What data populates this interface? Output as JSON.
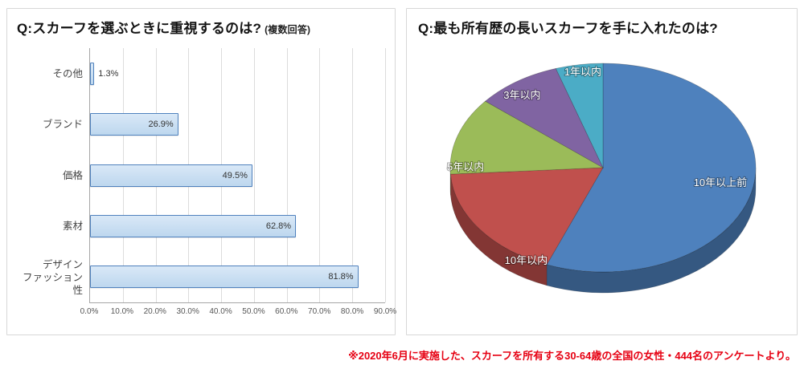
{
  "footnote": {
    "text": "※2020年6月に実施した、スカーフを所有する30-64歳の全国の女性・444名のアンケートより。",
    "color": "#e60012"
  },
  "chart_data": [
    {
      "type": "bar",
      "orientation": "horizontal",
      "title": "Q:スカーフを選ぶときに重視するのは?",
      "title_note": "(複数回答)",
      "categories": [
        "その他",
        "ブランド",
        "価格",
        "素材",
        "デザイン\nファッション性"
      ],
      "values": [
        1.3,
        26.9,
        49.5,
        62.8,
        81.8
      ],
      "value_labels": [
        "1.3%",
        "26.9%",
        "49.5%",
        "62.8%",
        "81.8%"
      ],
      "xlim": [
        0,
        90
      ],
      "x_ticks": [
        "0.0%",
        "10.0%",
        "20.0%",
        "30.0%",
        "40.0%",
        "50.0%",
        "60.0%",
        "70.0%",
        "80.0%",
        "90.0%"
      ],
      "grid": true,
      "legend": "none",
      "bar_fill": "#BDD7EE",
      "bar_fill_light": "#D9E8F7",
      "bar_border": "#4F81BD"
    },
    {
      "type": "pie",
      "style": "3d",
      "title": "Q:最も所有歴の長いスカーフを手に入れたのは?",
      "labels": [
        "10年以上前",
        "10年以内",
        "5年以内",
        "3年以内",
        "1年以内"
      ],
      "values": [
        56,
        18,
        12,
        9,
        5
      ],
      "unit": "%",
      "colors": [
        "#4E81BD",
        "#C0504D",
        "#9BBB59",
        "#8064A2",
        "#4BACC6"
      ],
      "start_angle_deg": 0,
      "direction": "clockwise",
      "label_color": "#FFFFFF",
      "legend": "none"
    }
  ]
}
